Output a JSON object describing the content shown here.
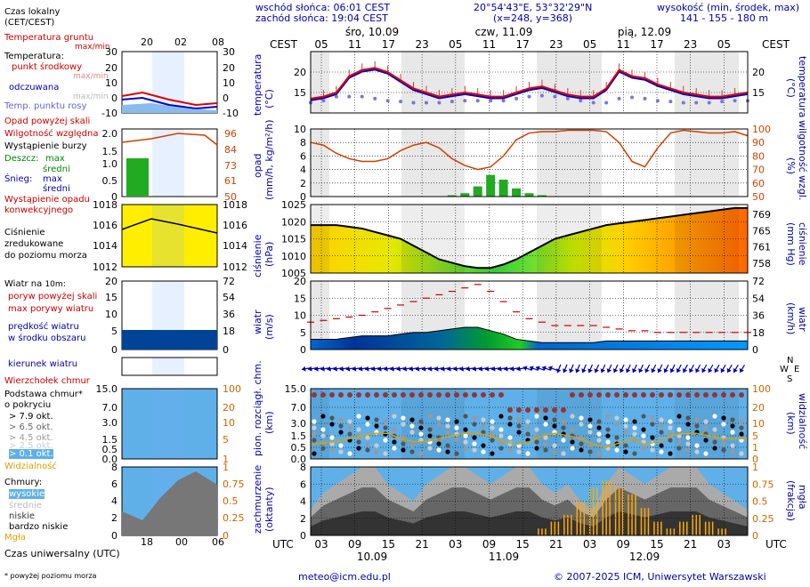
{
  "header": {
    "sunrise": "wschód słońca: 06:01 CEST",
    "sunset": "zachód słońca: 19:04 CEST",
    "coords": "20°54'43\"E, 53°32'29\"N",
    "grid": "(x=248,  y=368)",
    "height_title": "wysokość (min, środek, max)",
    "height_values": "141 - 155 - 180 m"
  },
  "legend": {
    "local_time": "Czas lokalny",
    "local_time2": "(CET/CEST)",
    "local_ticks": [
      "20",
      "02",
      "08"
    ],
    "soil_temp": "Temperatura gruntu",
    "soil_temp2": "max/min",
    "temperature": "Temperatura:",
    "mid_point": "punkt środkowy",
    "max_min": "max/min",
    "felt": "odczuwana",
    "max_min2": "max/min",
    "dew": "Temp. punktu rosy",
    "precip_above": "Opad powyżej skali",
    "humidity": "Wilgotność względna",
    "storm": "Wystąpienie burzy",
    "rain": "Deszcz:",
    "rain_max": "max",
    "rain_mid": "średni",
    "snow": "Śnieg:",
    "snow_max": "max",
    "snow_mid": "średni",
    "precip_occ": "Wystąpienie opadu",
    "precip_occ2": "konwekcyjnego",
    "pressure": "Ciśnienie",
    "pressure2": "zredukowane",
    "pressure3": "do poziomu morza",
    "wind": "Wiatr na ",
    "wind_h": "10m",
    "wind_colon": ":",
    "gust_above": "poryw powyżej skali",
    "gust_max": "max porywy wiatru",
    "wind_speed": "prędkość wiatru",
    "wind_speed2": "w środku obszaru",
    "wind_dir": "kierunek wiatru",
    "cloud_top": "Wierzchołek chmur",
    "cloud_base": "Podstawa chmur*",
    "cloud_base2": "o pokryciu",
    "okt79": "> 7.9 okt.",
    "okt65": "> 6.5 okt.",
    "okt45": "> 4.5 okt.",
    "okt25": "> 2.5 okt.",
    "okt01": "> 0.1 okt.",
    "visibility": "Widzialność",
    "clouds": "Chmury:",
    "high": "wysokie",
    "mid": "średnie",
    "low": "niskie",
    "very_low": "bardzo niskie",
    "fog": "Mgła",
    "utc_time": "Czas uniwersalny (UTC)",
    "utc_ticks": [
      "18",
      "00",
      "06"
    ],
    "footnote": "* powyżej poziomu morza"
  },
  "axes": {
    "cest": "CEST",
    "utc": "UTC",
    "days_top": [
      "śro, 10.09",
      "czw, 11.09",
      "pią, 12.09"
    ],
    "days_bottom": [
      "10.09",
      "11.09",
      "12.09"
    ],
    "cest_ticks": [
      "05",
      "11",
      "17",
      "23",
      "05",
      "11",
      "17",
      "23",
      "05",
      "11",
      "17",
      "23",
      "05"
    ],
    "utc_ticks": [
      "03",
      "09",
      "15",
      "21",
      "03",
      "09",
      "15",
      "21",
      "03",
      "09",
      "15",
      "21",
      "03"
    ],
    "temp_left": "temperatura",
    "temp_left2": "(°C)",
    "precip_left": "opad",
    "precip_left2": "(mm/h, kg/m²/h)",
    "pres_left": "ciśnienie",
    "pres_left2": "(hPa)",
    "wind_left": "wiatr",
    "wind_left2": "(m/s)",
    "cloudbase_left": "pion. rozciągł. chm.",
    "cloudbase_left2": "(km)",
    "cover_left": "zachmurzenie",
    "cover_left2": "(oktanty)",
    "temp_right": "temperatura",
    "temp_right2": "(°C)",
    "hum_right": "wilgotność wzgl.",
    "hum_right2": "(%)",
    "pres_right": "ciśnienie",
    "pres_right2": "(mm Hg)",
    "wind_right": "wiatr",
    "wind_right2": "(km/h)",
    "vis_right": "widzialność",
    "vis_right2": "(km)",
    "fog_right": "mgła",
    "fog_right2": "(frakcja)"
  },
  "footer": {
    "email": "meteo@icm.edu.pl",
    "copyright": "© 2007-2025 ICM, Uniwersytet Warszawski"
  },
  "chart_data": [
    {
      "type": "line",
      "id": "temperature",
      "ylim": [
        10,
        25
      ],
      "yticks": [
        15,
        20
      ],
      "yticks_right": [
        15,
        20
      ],
      "series": [
        {
          "name": "punkt środkowy",
          "values": [
            13.5,
            14,
            15,
            19,
            20.5,
            21,
            20,
            18,
            16,
            15,
            14,
            14.5,
            15,
            14.5,
            14,
            14,
            15,
            16,
            16.5,
            15.5,
            14.5,
            14,
            14,
            16,
            20.5,
            19,
            18.5,
            17,
            16,
            15,
            14.5,
            14,
            14,
            14.5,
            15
          ]
        }
      ],
      "dew_points": [
        12.5,
        13,
        14,
        14,
        14,
        13.5,
        13,
        12.8,
        12.5,
        12.5,
        12.5,
        12.8,
        13,
        13,
        13,
        13,
        13.5,
        14,
        14.2,
        14,
        13.5,
        13,
        12.5,
        12.5,
        13.5,
        13.8,
        13.5,
        13,
        12.8,
        12.5,
        12.5,
        12.5,
        12.8,
        13,
        13
      ]
    },
    {
      "type": "bar",
      "id": "precipitation",
      "ylim": [
        0,
        10
      ],
      "yticks": [
        0,
        2,
        4,
        6,
        8,
        10
      ],
      "yticks_right": [
        50,
        60,
        70,
        80,
        90,
        100
      ],
      "values": [
        0,
        0,
        0,
        0,
        0,
        0,
        0,
        0,
        0,
        0,
        0,
        0.2,
        0.5,
        1.5,
        3.2,
        2.5,
        1.2,
        0.5,
        0.2,
        0,
        0,
        0,
        0,
        0,
        0,
        0,
        0,
        0,
        0,
        0,
        0,
        0,
        0,
        0,
        0
      ],
      "humidity": [
        90,
        88,
        82,
        78,
        76,
        76,
        78,
        84,
        88,
        90,
        86,
        78,
        73,
        70,
        72,
        80,
        92,
        97,
        98,
        98,
        99,
        99,
        99,
        98,
        90,
        76,
        72,
        86,
        97,
        99,
        98,
        97,
        97,
        98,
        95
      ]
    },
    {
      "type": "area",
      "id": "pressure",
      "ylim": [
        1005,
        1025
      ],
      "yticks": [
        1005,
        1010,
        1015,
        1020,
        1025
      ],
      "yticks_right": [
        758,
        761,
        765,
        769
      ],
      "values": [
        1019,
        1019,
        1019,
        1018.5,
        1018,
        1017,
        1016,
        1015,
        1013,
        1011,
        1009,
        1008,
        1007,
        1006.5,
        1006.5,
        1007.5,
        1009,
        1011,
        1013,
        1015,
        1016,
        1017,
        1018,
        1019,
        1019.5,
        1020,
        1020.5,
        1021,
        1021.5,
        1022,
        1022.5,
        1023,
        1023.5,
        1024,
        1024
      ]
    },
    {
      "type": "line",
      "id": "wind",
      "ylim": [
        0,
        20
      ],
      "yticks": [
        0,
        5,
        10,
        15,
        20
      ],
      "yticks_right": [
        0,
        18,
        36,
        54,
        72
      ],
      "speed": [
        3,
        3,
        3,
        3.5,
        4,
        4,
        4,
        4.5,
        5,
        5,
        5.5,
        6,
        6.5,
        6.5,
        5.5,
        4.5,
        3,
        2.5,
        2,
        2,
        2,
        2,
        2,
        2.5,
        2.5,
        2.5,
        2.5,
        2.5,
        2.5,
        2.5,
        2.5,
        2.5,
        2.5,
        2.5,
        2.5
      ],
      "gusts": [
        8,
        8.5,
        9,
        9.5,
        10,
        11,
        12,
        13,
        14,
        15,
        16,
        17,
        18,
        19,
        17,
        14,
        11,
        9,
        8,
        7,
        7,
        7,
        7,
        6.5,
        6,
        5.5,
        5.5,
        5,
        5,
        5,
        5,
        5,
        5,
        5,
        5
      ]
    },
    {
      "type": "scatter",
      "id": "cloudbase",
      "ylim": [
        0,
        15
      ],
      "yticks": [
        0,
        0.5,
        1.5,
        3.0,
        7.0,
        15.0
      ],
      "yticks_right": [
        0,
        1,
        5,
        10,
        20,
        100
      ],
      "visibility": [
        2,
        2.5,
        3,
        4,
        5,
        6,
        6,
        4,
        3,
        3,
        4,
        5,
        6,
        6,
        5,
        3,
        2,
        3,
        5,
        6,
        5,
        4,
        2,
        1,
        2.5,
        4,
        2,
        3,
        5,
        6,
        6,
        5,
        4,
        4,
        4
      ]
    },
    {
      "type": "area",
      "id": "clouds",
      "ylim": [
        0,
        8
      ],
      "yticks": [
        0,
        2,
        4,
        6,
        8
      ],
      "yticks_right": [
        0,
        0.25,
        0.5,
        0.75,
        1
      ],
      "total": [
        3,
        5,
        6,
        7,
        8,
        8,
        6,
        5,
        4,
        6,
        7,
        8,
        8,
        7,
        6,
        7,
        8,
        8,
        6,
        5,
        6,
        4,
        3,
        6,
        8,
        7,
        6,
        7,
        8,
        8,
        8,
        6,
        5,
        4,
        3
      ],
      "fog": [
        0,
        0,
        0,
        0,
        0,
        0,
        0,
        0,
        0,
        0,
        0,
        0,
        0,
        0,
        0,
        0,
        0,
        0,
        0.1,
        0.2,
        0.3,
        0.5,
        0.7,
        0.8,
        0.7,
        0.6,
        0.4,
        0.2,
        0.1,
        0.2,
        0.3,
        0.2,
        0.1,
        0,
        0
      ]
    }
  ]
}
